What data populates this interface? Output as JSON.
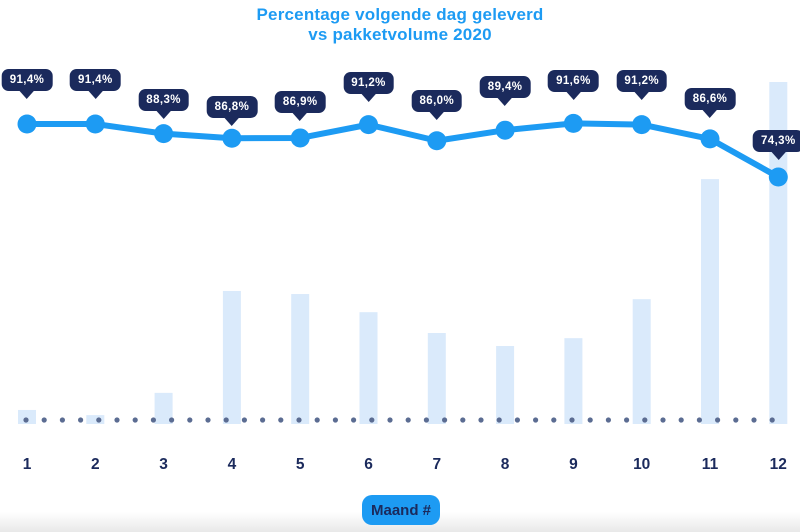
{
  "title": {
    "line1": "Percentage volgende dag geleverd",
    "line2": "vs pakketvolume 2020"
  },
  "x_axis_badge": "Maand #",
  "colors": {
    "accent_blue": "#1d9bf3",
    "navy": "#1b2a5c",
    "bar_fill": "#daeafb",
    "dot_color": "#5b6c92",
    "background": "#ffffff",
    "tooltip_text": "#ffffff"
  },
  "chart_data": {
    "type": "line+bar",
    "title": "Percentage volgende dag geleverd vs pakketvolume 2020",
    "categories": [
      "1",
      "2",
      "3",
      "4",
      "5",
      "6",
      "7",
      "8",
      "9",
      "10",
      "11",
      "12"
    ],
    "xlabel": "Maand #",
    "ylabel": "",
    "grid": false,
    "legend": false,
    "series": [
      {
        "name": "Percentage volgende dag geleverd",
        "type": "line",
        "unit": "%",
        "values": [
          91.4,
          91.4,
          88.3,
          86.8,
          86.9,
          91.2,
          86.0,
          89.4,
          91.6,
          91.2,
          86.6,
          74.3
        ],
        "labels": [
          "91,4%",
          "91,4%",
          "88,3%",
          "86,8%",
          "86,9%",
          "91,2%",
          "86,0%",
          "89,4%",
          "91,6%",
          "91,2%",
          "86,6%",
          "74,3%"
        ]
      },
      {
        "name": "Pakketvolume",
        "type": "bar",
        "unit": "relative",
        "volume_note": "volume axis is unlabeled in the image; values are relative bar heights (max month = 100)",
        "values": [
          4.1,
          2.6,
          9.1,
          38.9,
          38.0,
          32.7,
          26.6,
          22.8,
          25.1,
          36.5,
          71.6,
          100
        ]
      },
      {
        "name": "dotted-baseline",
        "type": "dotted-line",
        "note": "decorative dotted baseline along the x-axis"
      }
    ]
  }
}
